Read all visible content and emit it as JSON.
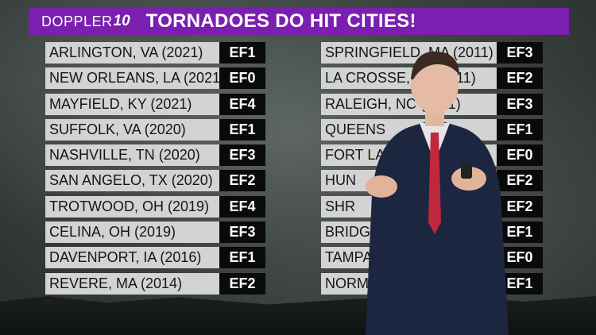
{
  "brand": {
    "word": "DOPPLER",
    "number": "10"
  },
  "title": "TORNADOES DO HIT CITIES!",
  "left_column": [
    {
      "city": "ARLINGTON, VA (2021)",
      "rating": "EF1"
    },
    {
      "city": "NEW ORLEANS, LA (2021)",
      "rating": "EF0"
    },
    {
      "city": "MAYFIELD, KY (2021)",
      "rating": "EF4"
    },
    {
      "city": "SUFFOLK, VA (2020)",
      "rating": "EF1"
    },
    {
      "city": "NASHVILLE, TN (2020)",
      "rating": "EF3"
    },
    {
      "city": "SAN ANGELO, TX (2020)",
      "rating": "EF2"
    },
    {
      "city": "TROTWOOD, OH (2019)",
      "rating": "EF4"
    },
    {
      "city": "CELINA, OH (2019)",
      "rating": "EF3"
    },
    {
      "city": "DAVENPORT, IA (2016)",
      "rating": "EF1"
    },
    {
      "city": "REVERE, MA (2014)",
      "rating": "EF2"
    }
  ],
  "right_column": [
    {
      "city": "SPRINGFIELD, MA (2011)",
      "rating": "EF3"
    },
    {
      "city": "LA CROSSE, WI (2011)",
      "rating": "EF2"
    },
    {
      "city": "RALEIGH, NC (2011)",
      "rating": "EF3"
    },
    {
      "city": "QUEENS",
      "rating": "EF1"
    },
    {
      "city": "FORT LA",
      "rating": "EF0"
    },
    {
      "city": "HUN",
      "rating": "EF2"
    },
    {
      "city": "SHR",
      "rating": "EF2"
    },
    {
      "city": "BRIDGE",
      "rating": "EF1"
    },
    {
      "city": "TAMPA",
      "rating": "EF0"
    },
    {
      "city": "NORMA",
      "rating": "EF1"
    }
  ],
  "colors": {
    "banner": "#7a1fb0",
    "city_cell": "#d3d3d3",
    "rating_cell": "#0a0a0a"
  }
}
